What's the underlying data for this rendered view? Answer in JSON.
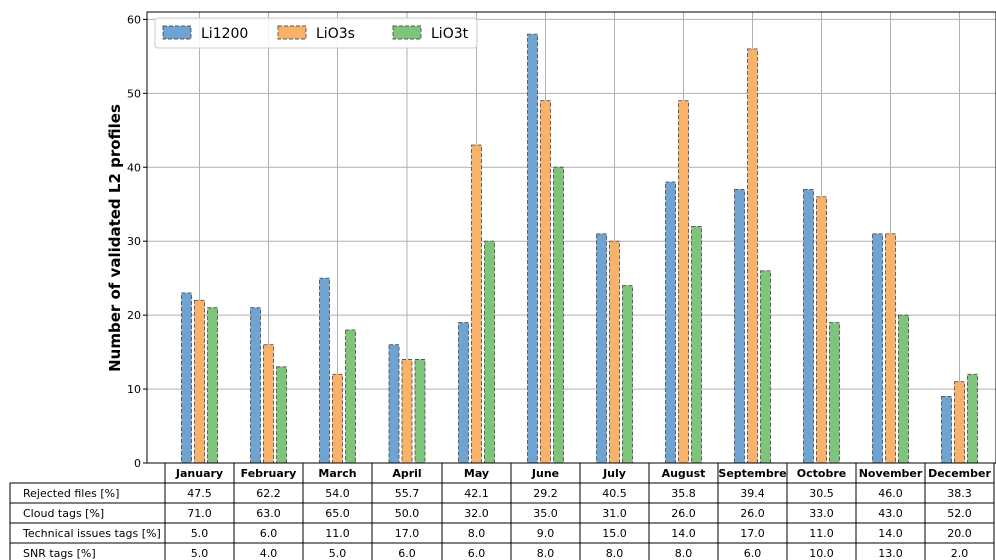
{
  "chart_data": {
    "type": "bar",
    "ylabel": "Number of validated L2 profiles",
    "ylim": [
      0,
      61
    ],
    "yticks": [
      0,
      10,
      20,
      30,
      40,
      50,
      60
    ],
    "grid": true,
    "legend_position": "top-left",
    "categories": [
      "January",
      "February",
      "March",
      "April",
      "May",
      "June",
      "July",
      "August",
      "Septembre",
      "Octobre",
      "November",
      "December"
    ],
    "series": [
      {
        "name": "Li1200",
        "color": "#6fa3d1",
        "values": [
          23,
          21,
          25,
          16,
          19,
          58,
          31,
          38,
          37,
          37,
          31,
          9
        ]
      },
      {
        "name": "LiO3s",
        "color": "#f8b26a",
        "values": [
          22,
          16,
          12,
          14,
          43,
          49,
          30,
          49,
          56,
          36,
          31,
          11
        ]
      },
      {
        "name": "LiO3t",
        "color": "#7fc47b",
        "values": [
          21,
          13,
          18,
          14,
          30,
          40,
          24,
          32,
          26,
          19,
          20,
          12
        ]
      }
    ],
    "table": {
      "rows": [
        {
          "label": "Rejected files [%]",
          "values": [
            "47.5",
            "62.2",
            "54.0",
            "55.7",
            "42.1",
            "29.2",
            "40.5",
            "35.8",
            "39.4",
            "30.5",
            "46.0",
            "38.3"
          ]
        },
        {
          "label": "Cloud tags [%]",
          "values": [
            "71.0",
            "63.0",
            "65.0",
            "50.0",
            "32.0",
            "35.0",
            "31.0",
            "26.0",
            "26.0",
            "33.0",
            "43.0",
            "52.0"
          ]
        },
        {
          "label": "Technical issues tags [%]",
          "values": [
            "5.0",
            "6.0",
            "11.0",
            "17.0",
            "8.0",
            "9.0",
            "15.0",
            "14.0",
            "17.0",
            "11.0",
            "14.0",
            "20.0"
          ]
        },
        {
          "label": "SNR tags [%]",
          "values": [
            "5.0",
            "4.0",
            "5.0",
            "6.0",
            "6.0",
            "8.0",
            "8.0",
            "8.0",
            "6.0",
            "10.0",
            "13.0",
            "2.0"
          ]
        }
      ]
    }
  }
}
